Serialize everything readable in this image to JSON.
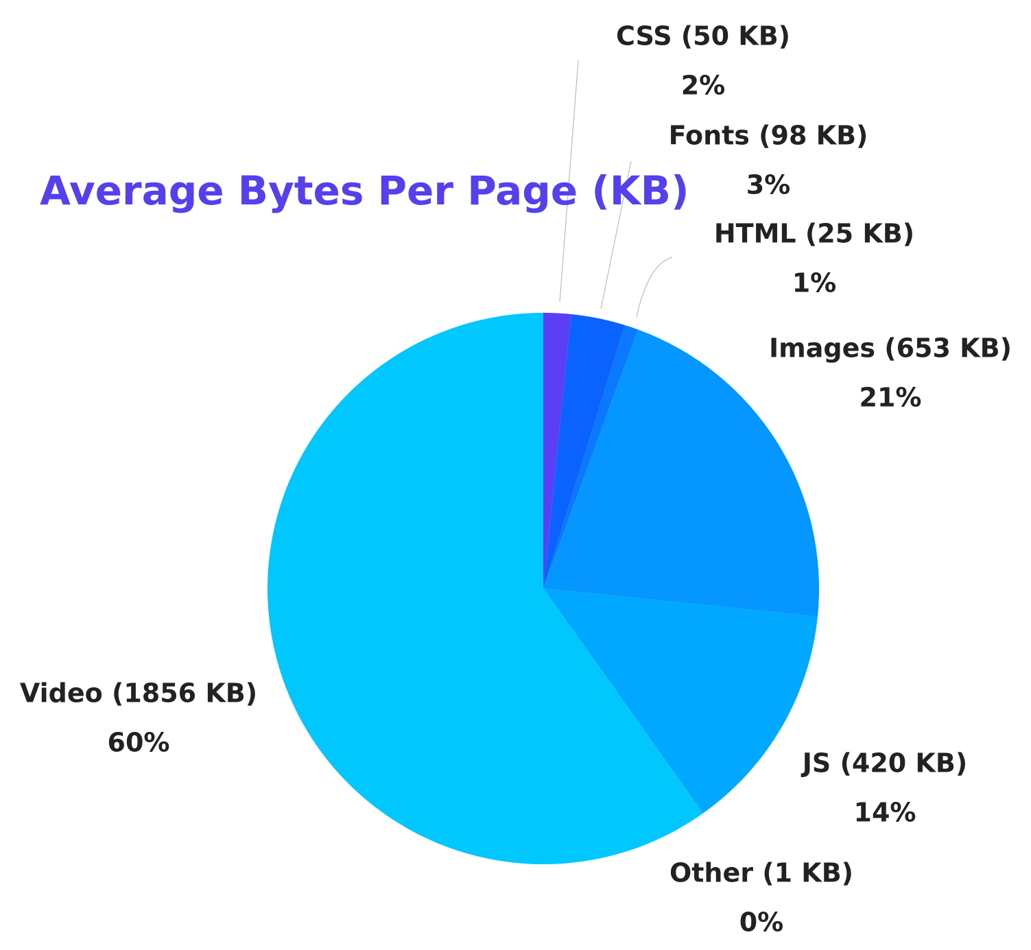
{
  "chart_data": {
    "type": "pie",
    "title": "Average Bytes Per Page (KB)",
    "categories": [
      "CSS (50 KB)",
      "Fonts (98 KB)",
      "HTML (25 KB)",
      "Images (653 KB)",
      "JS (420 KB)",
      "Other (1 KB)",
      "Video (1856 KB)"
    ],
    "values": [
      50,
      98,
      25,
      653,
      420,
      1,
      1856
    ],
    "value_labels": [
      "2%",
      "3%",
      "1%",
      "21%",
      "14%",
      "0%",
      "60%"
    ],
    "colors": [
      "#5a3ff5",
      "#0a63ff",
      "#0a78ff",
      "#0596ff",
      "#00a8ff",
      "#00a8ff",
      "#00c8ff"
    ]
  }
}
